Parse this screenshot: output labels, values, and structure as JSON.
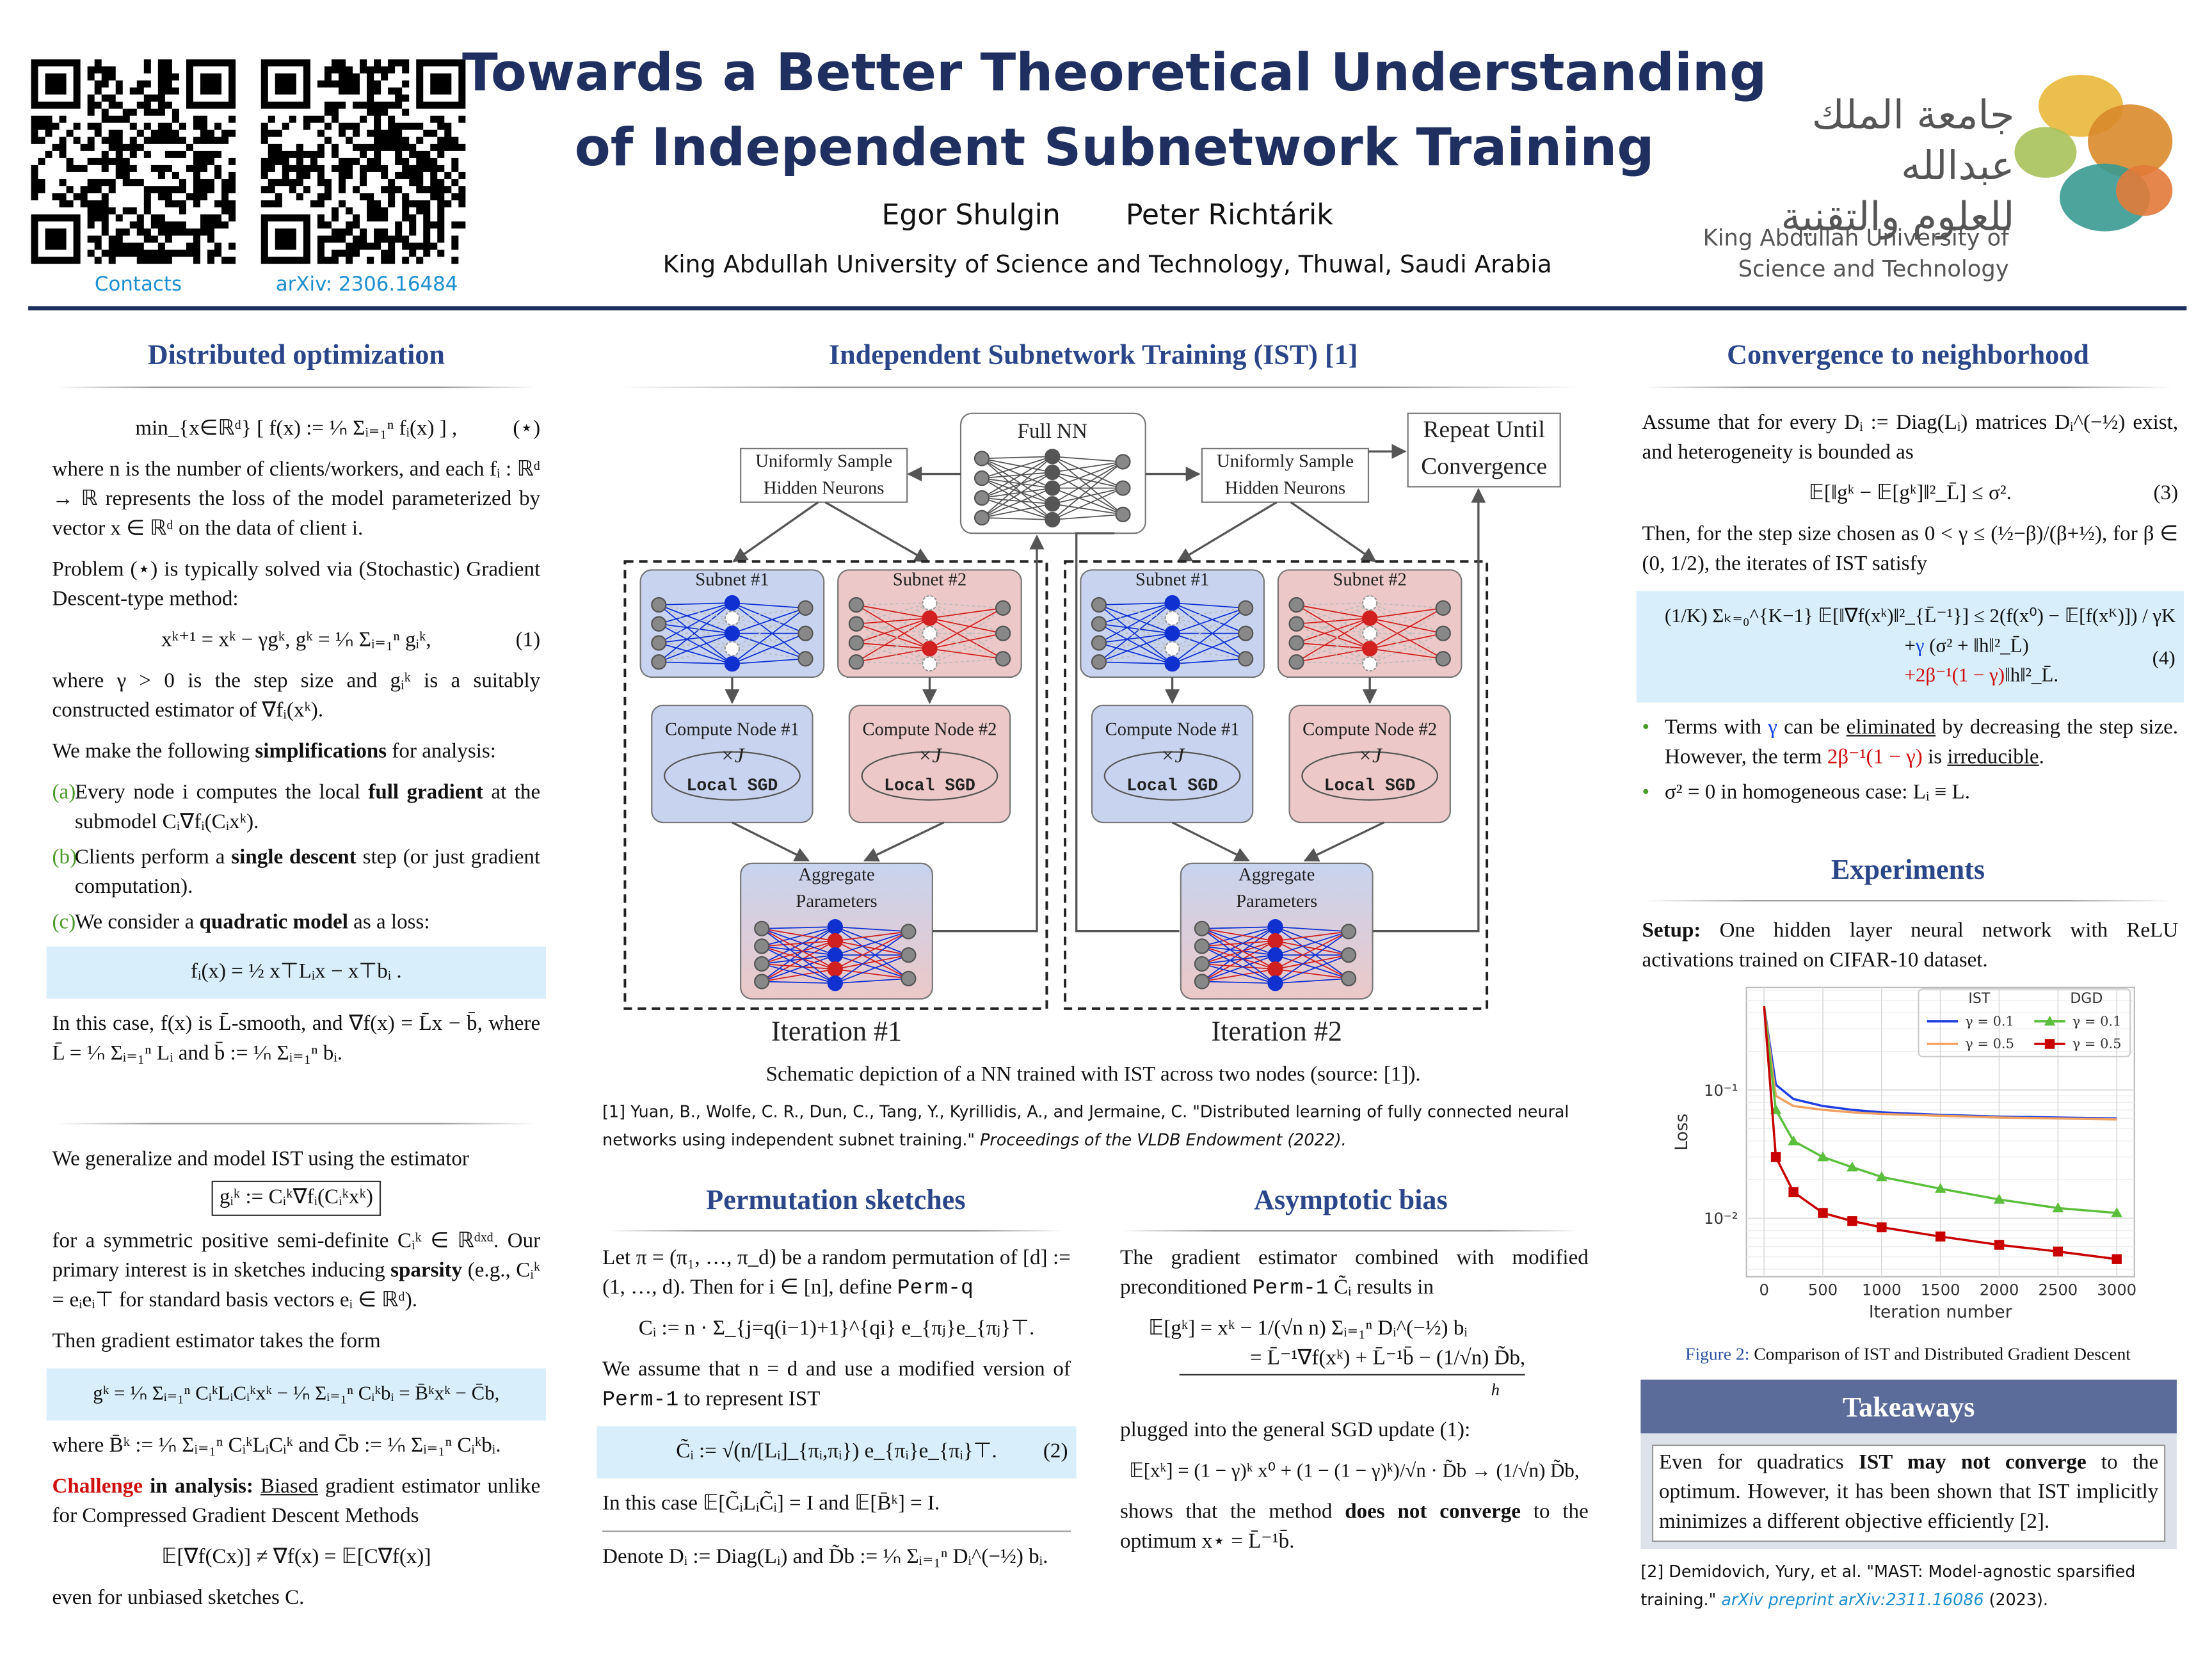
{
  "header": {
    "title": [
      "Towards a Better Theoretical Understanding",
      "of Independent Subnetwork Training"
    ],
    "authors": [
      "Egor Shulgin",
      "Peter Richtárik"
    ],
    "affiliation": "King Abdullah University of Science and Technology, Thuwal, Saudi Arabia",
    "links": [
      "Contacts",
      "arXiv: 2306.16484"
    ],
    "logo": {
      "arabic": [
        "جامعة الملك عبدالله",
        "للعلوم والتقنية"
      ],
      "english": [
        "King Abdullah University of",
        "Science and Technology"
      ]
    }
  },
  "distributed": {
    "heading": "Distributed optimization",
    "problem": "min_{x∈ℝᵈ} [ f(x) := ¹⁄ₙ Σᵢ₌₁ⁿ fᵢ(x) ] ,",
    "problem_tag": "(⋆)",
    "p1": "where n is the number of clients/workers, and each fᵢ : ℝᵈ → ℝ represents the loss of the model parameterized by vector x ∈ ℝᵈ on the data of client i.",
    "p2": "Problem (⋆) is typically solved via (Stochastic) Gradient Descent-type method:",
    "eq1": "xᵏ⁺¹ = xᵏ − γgᵏ,      gᵏ = ¹⁄ₙ Σᵢ₌₁ⁿ gᵢᵏ,",
    "eq1_tag": "(1)",
    "p3": "where γ > 0 is the step size and gᵢᵏ is a suitably constructed estimator of ∇fᵢ(xᵏ).",
    "p4": [
      "We make the following ",
      "simplifications",
      " for analysis:"
    ],
    "items": [
      {
        "marker": "(a)",
        "text": [
          "Every node i computes the local ",
          "full gradient",
          " at the submodel Cᵢ∇fᵢ(Cᵢxᵏ)."
        ]
      },
      {
        "marker": "(b)",
        "text": [
          "Clients perform a ",
          "single descent",
          " step (or just gradient computation)."
        ]
      },
      {
        "marker": "(c)",
        "text": [
          "We consider a ",
          "quadratic model",
          " as a loss:"
        ]
      }
    ],
    "quadratic": "fᵢ(x) = ½ x⊤Lᵢx − x⊤bᵢ .",
    "p5": "In this case, f(x) is L̄-smooth, and ∇f(x) = L̄x − b̄, where L̄ = ¹⁄ₙ Σᵢ₌₁ⁿ Lᵢ and b̄ := ¹⁄ₙ Σᵢ₌₁ⁿ bᵢ.",
    "p6": "We generalize and model IST using the estimator",
    "estimator": "gᵢᵏ := Cᵢᵏ∇fᵢ(Cᵢᵏxᵏ)",
    "p7": [
      "for a symmetric positive semi-definite Cᵢᵏ ∈ ℝᵈˣᵈ. Our primary interest is in sketches inducing ",
      "sparsity",
      " (e.g., Cᵢᵏ = eᵢeᵢ⊤ for standard basis vectors eᵢ ∈ ℝᵈ)."
    ],
    "p8": "Then gradient estimator takes the form",
    "gradient": "gᵏ = ¹⁄ₙ Σᵢ₌₁ⁿ CᵢᵏLᵢCᵢᵏxᵏ − ¹⁄ₙ Σᵢ₌₁ⁿ Cᵢᵏbᵢ = B̄ᵏxᵏ − C̄b,",
    "p9": "where B̄ᵏ := ¹⁄ₙ Σᵢ₌₁ⁿ CᵢᵏLᵢCᵢᵏ and C̄b := ¹⁄ₙ Σᵢ₌₁ⁿ Cᵢᵏbᵢ.",
    "p10": [
      "Challenge",
      " in analysis:",
      " ",
      "Biased",
      " gradient estimator unlike for Compressed Gradient Descent Methods"
    ],
    "bias": "𝔼[∇f(Cx)] ≠ ∇f(x) = 𝔼[C∇f(x)]",
    "p11": "even for unbiased sketches C."
  },
  "ist": {
    "heading": "Independent Subnetwork Training (IST) [1]",
    "diagram": {
      "full_nn": "Full NN",
      "sample": [
        "Uniformly Sample",
        "Hidden Neurons"
      ],
      "repeat": [
        "Repeat Until",
        "Convergence"
      ],
      "subnets": [
        "Subnet #1",
        "Subnet #2"
      ],
      "compute_nodes": [
        "Compute Node #1",
        "Compute Node #2"
      ],
      "repeat_count": "×J",
      "local_sgd": "Local SGD",
      "aggregate": [
        "Aggregate",
        "Parameters"
      ],
      "iterations": [
        "Iteration #1",
        "Iteration #2"
      ]
    },
    "caption": "Schematic depiction of a NN trained with IST across two nodes (source: [1]).",
    "reference": [
      "[1] Yuan, B., Wolfe, C. R., Dun, C., Tang, Y., Kyrillidis, A., and Jermaine, C. \"Distributed learning of fully connected neural networks using independent subnet training.\" ",
      "Proceedings of the VLDB Endowment (2022)."
    ]
  },
  "permutation": {
    "heading": "Permutation sketches",
    "p1": [
      "Let π = (π₁, …, π_d) be a random permutation of [d] := (1, …, d). Then for i ∈ [n], define ",
      "Perm-q"
    ],
    "eq1": "Cᵢ := n · Σ_{j=q(i−1)+1}^{qi} e_{πⱼ}e_{πⱼ}⊤.",
    "p2": [
      "We assume that n = d and use a modified version of ",
      "Perm-1",
      " to represent IST"
    ],
    "eq2": "C̃ᵢ := √(n/[Lᵢ]_{πᵢ,πᵢ}) e_{πᵢ}e_{πᵢ}⊤.",
    "eq2_tag": "(2)",
    "p3": "In this case 𝔼[C̃ᵢLᵢC̃ᵢ] = I and 𝔼[B̄ᵏ] = I.",
    "p4": "Denote Dᵢ := Diag(Lᵢ) and D̃b := ¹⁄ₙ Σᵢ₌₁ⁿ Dᵢ^(−½) bᵢ."
  },
  "asymptotic": {
    "heading": "Asymptotic bias",
    "p1": [
      "The gradient estimator combined with modified preconditioned ",
      "Perm-1",
      " C̃ᵢ results in"
    ],
    "eq1": [
      "𝔼[gᵏ] = xᵏ − 1/(√n n) Σᵢ₌₁ⁿ Dᵢ^(−½) bᵢ",
      "= L̄⁻¹∇f(xᵏ) + L̄⁻¹b̄ − (1/√n) D̃b,",
      "h"
    ],
    "p2": "plugged into the general SGD update (1):",
    "eq2": "𝔼[xᵏ] = (1 − γ)ᵏ x⁰ + (1 − (1 − γ)ᵏ)/√n · D̃b → (1/√n) D̃b,",
    "p3": [
      "shows that the method ",
      "does not converge",
      " to the optimum x⋆ = L̄⁻¹b̄."
    ]
  },
  "convergence": {
    "heading": "Convergence to neighborhood",
    "p1": "Assume that for every Dᵢ := Diag(Lᵢ) matrices Dᵢ^(−½) exist, and heterogeneity is bounded as",
    "eq3": "𝔼[‖gᵏ − 𝔼[gᵏ]‖²_L̄] ≤ σ².",
    "eq3_tag": "(3)",
    "p2": "Then, for the step size chosen as 0 < γ ≤ (½−β)/(β+½), for β ∈ (0, 1/2), the iterates of IST satisfy",
    "eq4": [
      "(1/K) Σₖ₌₀^{K−1} 𝔼[‖∇f(xᵏ)‖²_{L̄⁻¹}] ≤ 2(f(x⁰) − 𝔼[f(xᴷ)]) / γK",
      "+",
      "γ",
      " (σ² + ‖h‖²_L̄)",
      "+2β⁻¹(1 − γ)",
      "‖h‖²_L̄."
    ],
    "eq4_tag": "(4)",
    "bullets": [
      [
        "Terms with ",
        "γ",
        " can be ",
        "eliminated",
        " by decreasing the step size. However, the term ",
        "2β⁻¹(1 − γ)",
        " is ",
        "irreducible",
        "."
      ],
      [
        "σ² = 0 in homogeneous case: Lᵢ ≡ L."
      ]
    ]
  },
  "experiments": {
    "heading": "Experiments",
    "setup": [
      "Setup:",
      " One hidden layer neural network with ReLU activations trained on CIFAR-10 dataset."
    ],
    "figure": {
      "type": "line",
      "x_label": "Iteration number",
      "y_label": "Loss",
      "log_y": true,
      "grid": true,
      "xlim": [
        -150,
        3150
      ],
      "ylim": [
        0.0035,
        0.63
      ],
      "xticks": [
        0,
        500,
        1000,
        1500,
        2000,
        2500,
        3000
      ],
      "yticks": [
        {
          "value": 0.1,
          "label": "10⁻¹"
        },
        {
          "value": 0.01,
          "label": "10⁻²"
        }
      ],
      "x": [
        0,
        100,
        250,
        500,
        750,
        1000,
        1500,
        2000,
        2500,
        3000
      ],
      "series_groups": [
        {
          "name": "IST",
          "series": [
            {
              "name": "γ = 0.1",
              "color": "#1f3fe0",
              "values": [
                0.45,
                0.11,
                0.085,
                0.075,
                0.07,
                0.067,
                0.064,
                0.062,
                0.061,
                0.06
              ]
            },
            {
              "name": "γ = 0.5",
              "color": "#f0a060",
              "values": [
                0.45,
                0.09,
                0.075,
                0.07,
                0.067,
                0.065,
                0.063,
                0.061,
                0.06,
                0.059
              ]
            }
          ]
        },
        {
          "name": "DGD",
          "series": [
            {
              "name": "γ = 0.1",
              "color": "#5cbf3c",
              "marker": "triangle",
              "values": [
                0.45,
                0.07,
                0.04,
                0.03,
                0.025,
                0.021,
                0.017,
                0.014,
                0.012,
                0.011
              ]
            },
            {
              "name": "γ = 0.5",
              "color": "#c80000",
              "marker": "square",
              "values": [
                0.45,
                0.03,
                0.016,
                0.011,
                0.0095,
                0.0085,
                0.0072,
                0.0062,
                0.0055,
                0.0048
              ]
            }
          ]
        }
      ]
    },
    "caption": [
      "Figure 2:",
      " Comparison of IST and Distributed Gradient Descent"
    ]
  },
  "takeaways": {
    "heading": "Takeaways",
    "text": [
      "Even for quadratics ",
      "IST may not converge",
      " to the optimum. However, it has been shown that IST implicitly minimizes a different objective efficiently [2]."
    ]
  },
  "reference2": [
    "[2] Demidovich, Yury, et al. \"MAST: Model-agnostic sparsified training.\" ",
    "arXiv preprint arXiv:2311.16086",
    " (2023)."
  ]
}
